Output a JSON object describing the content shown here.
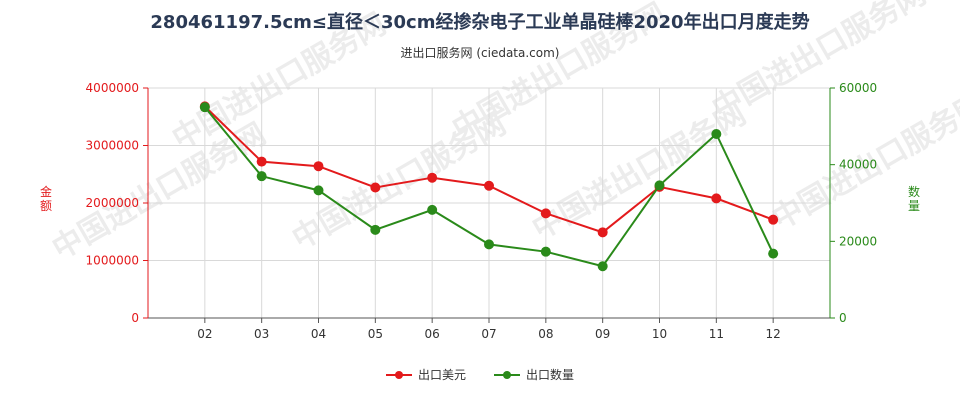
{
  "title": "280461197.5cm≤直径＜30cm经掺杂电子工业单晶硅棒2020年出口月度走势",
  "subtitle": "进出口服务网 (ciedata.com)",
  "watermark": "中国进出口服务网",
  "chart_data": {
    "type": "line",
    "title": "280461197.5cm≤直径＜30cm经掺杂电子工业单晶硅棒2020年出口月度走势",
    "categories": [
      "02",
      "03",
      "04",
      "05",
      "06",
      "07",
      "08",
      "09",
      "10",
      "11",
      "12"
    ],
    "y_left": {
      "label": "金额",
      "range": [
        0,
        4000000
      ],
      "ticks": [
        "0",
        "1000000",
        "2000000",
        "3000000",
        "4000000"
      ],
      "color": "#e31a1c"
    },
    "y_right": {
      "label": "数量",
      "range": [
        0,
        60000
      ],
      "ticks": [
        "0",
        "20000",
        "40000",
        "60000"
      ],
      "color": "#2a8a1a"
    },
    "series": [
      {
        "name": "出口美元",
        "axis": "left",
        "color": "#e31a1c",
        "values": [
          3680000,
          2720000,
          2640000,
          2270000,
          2440000,
          2300000,
          1820000,
          1490000,
          2280000,
          2080000,
          1710000
        ]
      },
      {
        "name": "出口数量",
        "axis": "right",
        "color": "#2a8a1a",
        "values": [
          55000,
          37000,
          33300,
          23000,
          28200,
          19200,
          17300,
          13500,
          34600,
          48000,
          16800
        ]
      }
    ],
    "grid": true,
    "legend_position": "bottom"
  }
}
